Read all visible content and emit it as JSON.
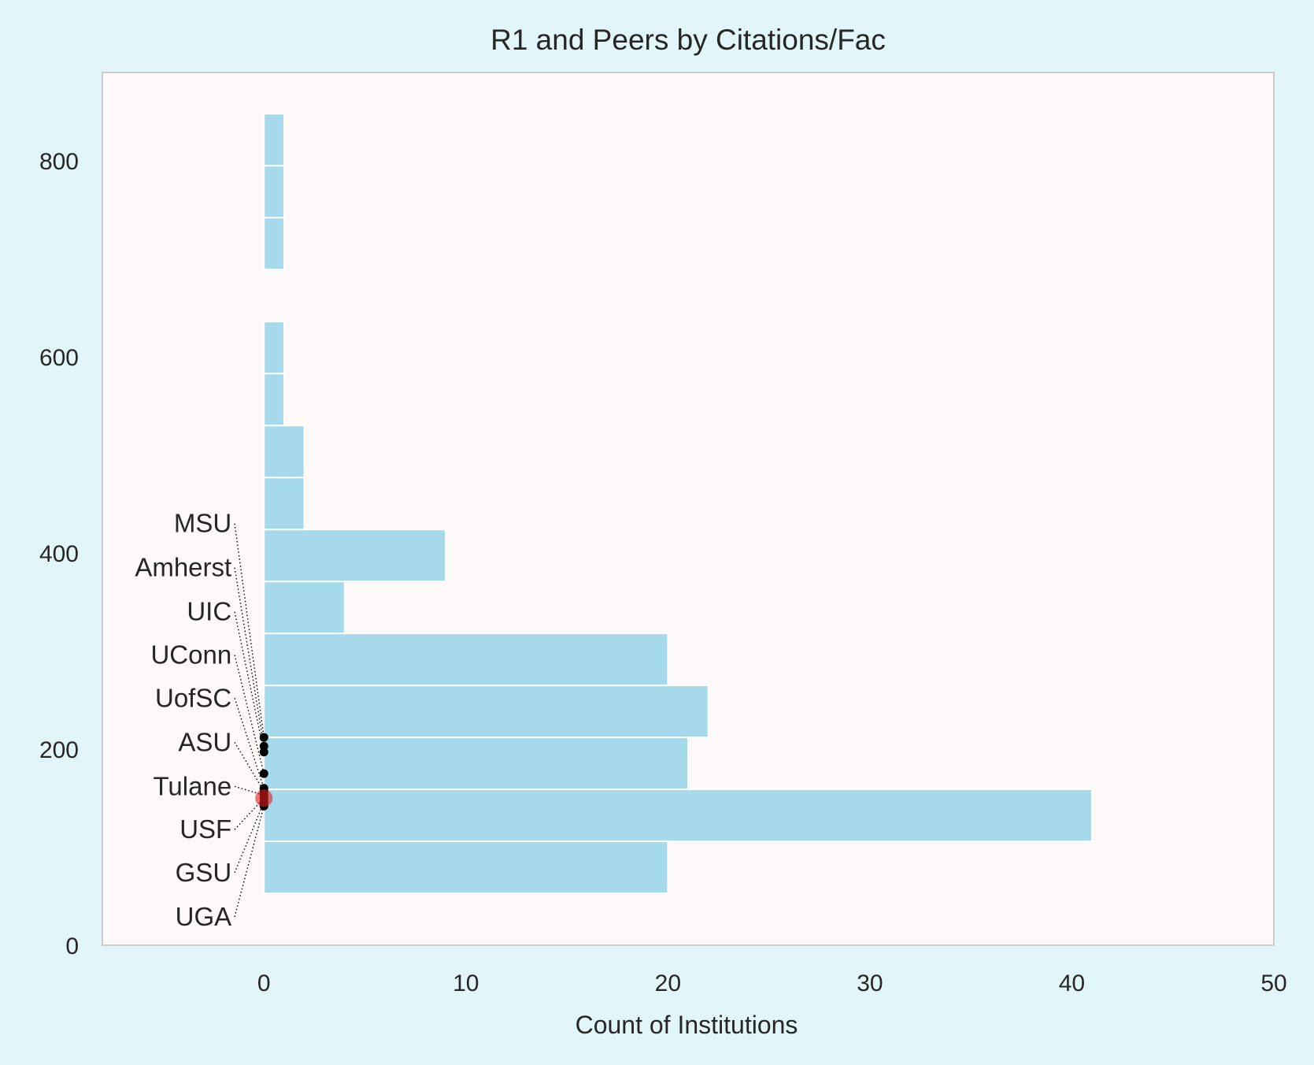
{
  "chart_data": {
    "type": "bar",
    "orientation": "horizontal",
    "title": "R1 and Peers by Citations/Fac",
    "xlabel": "Count of Institutions",
    "ylabel": "",
    "xlim": [
      -8,
      50
    ],
    "ylim": [
      0,
      890
    ],
    "xticks": [
      "0",
      "10",
      "20",
      "30",
      "40",
      "50"
    ],
    "yticks": [
      "0",
      "200",
      "400",
      "600",
      "800"
    ],
    "bin_width": 53,
    "bins": [
      {
        "start": 53,
        "count": 20
      },
      {
        "start": 106,
        "count": 41
      },
      {
        "start": 159,
        "count": 21
      },
      {
        "start": 212,
        "count": 22
      },
      {
        "start": 265,
        "count": 20
      },
      {
        "start": 318,
        "count": 4
      },
      {
        "start": 371,
        "count": 9
      },
      {
        "start": 424,
        "count": 2
      },
      {
        "start": 477,
        "count": 2
      },
      {
        "start": 530,
        "count": 1
      },
      {
        "start": 583,
        "count": 1
      },
      {
        "start": 636,
        "count": 0
      },
      {
        "start": 689,
        "count": 1
      },
      {
        "start": 742,
        "count": 1
      },
      {
        "start": 795,
        "count": 1
      }
    ],
    "peers": [
      {
        "name": "MSU",
        "value": 212,
        "label_y": 430
      },
      {
        "name": "Amherst",
        "value": 203,
        "label_y": 385
      },
      {
        "name": "UIC",
        "value": 197,
        "label_y": 340
      },
      {
        "name": "UConn",
        "value": 175,
        "label_y": 296
      },
      {
        "name": "UofSC",
        "value": 160,
        "label_y": 252
      },
      {
        "name": "ASU",
        "value": 157,
        "label_y": 207
      },
      {
        "name": "Tulane",
        "value": 153,
        "label_y": 162
      },
      {
        "name": "USF",
        "value": 150,
        "label_y": 118
      },
      {
        "name": "GSU",
        "value": 146,
        "label_y": 74
      },
      {
        "name": "UGA",
        "value": 142,
        "label_y": 29
      }
    ],
    "highlight": {
      "value": 150
    },
    "grid": false,
    "colors": {
      "bar": "#a6d9ec",
      "bar_edge": "#ffffff",
      "plot_background": "#fdf9f9",
      "figure_background": "#e2f6fa",
      "axes_edge": "#cccccc",
      "point": "#000000",
      "highlight": "#e31a1c"
    }
  }
}
